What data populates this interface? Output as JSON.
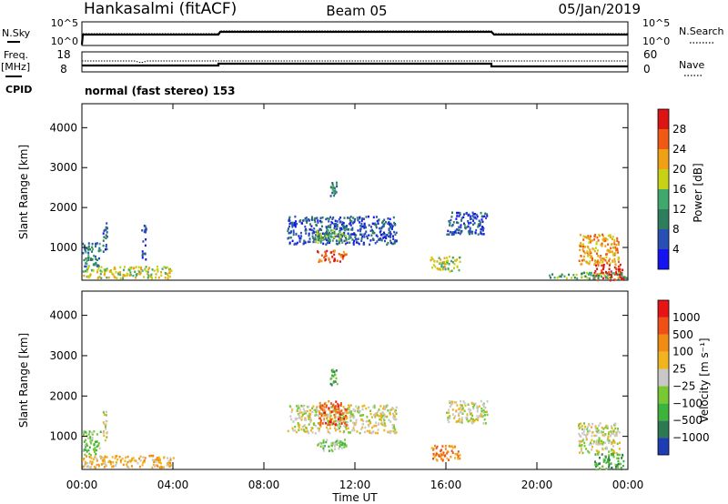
{
  "header": {
    "station": "Hankasalmi (fitACF)",
    "beam": "Beam 05",
    "date": "05/Jan/2019"
  },
  "noise_panel": {
    "left_label": "N.Sky",
    "right_label": "N.Search",
    "left_ticks": [
      "10^5",
      "10^0"
    ],
    "right_ticks": [
      "10^5",
      "10^0"
    ]
  },
  "freq_panel": {
    "left_label_1": "Freq.",
    "left_label_2": "[MHz]",
    "right_label": "Nave",
    "left_ticks": [
      "18",
      "8"
    ],
    "right_ticks": [
      "60",
      "0"
    ]
  },
  "cpid": {
    "label": "CPID",
    "value": "normal (fast stereo) 153"
  },
  "chart_data": [
    {
      "type": "heatmap",
      "name": "power",
      "ylabel": "Slant Range [km]",
      "ylim": [
        180,
        4600
      ],
      "yticks": [
        1000,
        2000,
        3000,
        4000
      ],
      "xlim": [
        0,
        24
      ],
      "colorbar": {
        "label": "Power [dB]",
        "ticks": [
          "4",
          "8",
          "12",
          "16",
          "20",
          "24",
          "28"
        ],
        "colors": [
          "#1414f0",
          "#2850b4",
          "#2e7d5c",
          "#3fa86a",
          "#c8d214",
          "#f0a014",
          "#f05a14",
          "#dc1414"
        ]
      },
      "regions": [
        {
          "t": [
            0.0,
            0.8
          ],
          "r": [
            550,
            1150
          ],
          "level": 2
        },
        {
          "t": [
            0.9,
            1.1
          ],
          "r": [
            900,
            1650
          ],
          "level": 1
        },
        {
          "t": [
            0.0,
            4.0
          ],
          "r": [
            250,
            550
          ],
          "level": 4
        },
        {
          "t": [
            2.6,
            2.8
          ],
          "r": [
            700,
            1600
          ],
          "level": 1
        },
        {
          "t": [
            9.0,
            13.8
          ],
          "r": [
            1100,
            1800
          ],
          "level": 1
        },
        {
          "t": [
            10.2,
            11.8
          ],
          "r": [
            1150,
            1500
          ],
          "level": 3
        },
        {
          "t": [
            10.3,
            11.6
          ],
          "r": [
            650,
            950
          ],
          "level": 6
        },
        {
          "t": [
            10.9,
            11.2
          ],
          "r": [
            2300,
            2700
          ],
          "level": 2
        },
        {
          "t": [
            15.3,
            16.6
          ],
          "r": [
            420,
            800
          ],
          "level": 4
        },
        {
          "t": [
            16.0,
            17.8
          ],
          "r": [
            1350,
            1900
          ],
          "level": 1
        },
        {
          "t": [
            21.8,
            23.6
          ],
          "r": [
            600,
            1350
          ],
          "level": 5
        },
        {
          "t": [
            22.5,
            23.8
          ],
          "r": [
            200,
            600
          ],
          "level": 7
        },
        {
          "t": [
            20.5,
            23.9
          ],
          "r": [
            250,
            400
          ],
          "level": 3
        }
      ]
    },
    {
      "type": "heatmap",
      "name": "velocity",
      "ylabel": "Slant Range [km]",
      "ylim": [
        180,
        4600
      ],
      "yticks": [
        1000,
        2000,
        3000,
        4000
      ],
      "xlim": [
        0,
        24
      ],
      "xlabel": "Time UT",
      "xticks": [
        "00:00",
        "04:00",
        "08:00",
        "12:00",
        "16:00",
        "20:00",
        "00:00"
      ],
      "colorbar": {
        "label": "Velocity [m s⁻¹]",
        "ticks": [
          "1000",
          "500",
          "100",
          "25",
          "−25",
          "−100",
          "−500",
          "−1000"
        ],
        "colors": [
          "#1e3cb4",
          "#2d7a52",
          "#3cb43c",
          "#78c832",
          "#c8c8c8",
          "#f0b41e",
          "#f08c14",
          "#f05014",
          "#e61414"
        ]
      },
      "regions": [
        {
          "t": [
            0.0,
            0.8
          ],
          "r": [
            550,
            1150
          ],
          "level": 3
        },
        {
          "t": [
            0.0,
            4.0
          ],
          "r": [
            250,
            550
          ],
          "level": 5
        },
        {
          "t": [
            0.9,
            1.1
          ],
          "r": [
            900,
            1650
          ],
          "level": 4
        },
        {
          "t": [
            9.0,
            13.8
          ],
          "r": [
            1100,
            1800
          ],
          "level": 4
        },
        {
          "t": [
            10.3,
            11.6
          ],
          "r": [
            650,
            950
          ],
          "level": 3
        },
        {
          "t": [
            10.4,
            11.6
          ],
          "r": [
            1300,
            1900
          ],
          "level": 7
        },
        {
          "t": [
            10.9,
            11.2
          ],
          "r": [
            2300,
            2700
          ],
          "level": 2
        },
        {
          "t": [
            15.3,
            16.6
          ],
          "r": [
            420,
            800
          ],
          "level": 6
        },
        {
          "t": [
            16.0,
            17.8
          ],
          "r": [
            1350,
            1900
          ],
          "level": 4
        },
        {
          "t": [
            21.8,
            23.6
          ],
          "r": [
            600,
            1350
          ],
          "level": 4
        },
        {
          "t": [
            22.5,
            23.8
          ],
          "r": [
            200,
            600
          ],
          "level": 2
        }
      ]
    }
  ]
}
